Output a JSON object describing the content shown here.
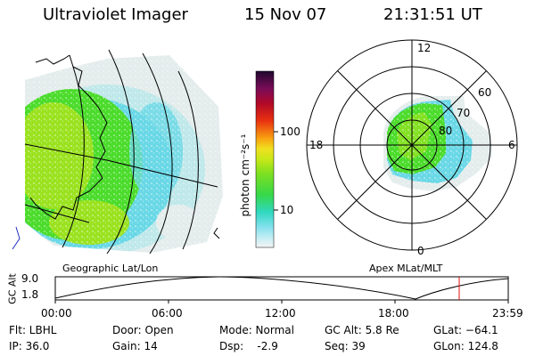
{
  "header": {
    "title": "Ultraviolet Imager",
    "date": "15 Nov 07",
    "time": "21:31:51 UT"
  },
  "colorbar": {
    "unit_label": "photon cm⁻²s⁻¹",
    "ticks": [
      "100",
      "10"
    ]
  },
  "left_panel": {
    "caption": "Geographic Lat/Lon"
  },
  "right_panel": {
    "caption": "Apex MLat/MLT",
    "mlt_labels": {
      "top": "12",
      "left": "18",
      "right": "6",
      "bottom": "0"
    },
    "lat_labels": [
      "60",
      "70",
      "80"
    ]
  },
  "orbit": {
    "axis_label": "GC Alt",
    "y_ticks": [
      "9.0",
      "1.8"
    ],
    "x_ticks": [
      "00:00",
      "06:00",
      "12:00",
      "18:00",
      "23:59"
    ]
  },
  "footer": {
    "flt": "Flt: LBHL",
    "ip": "IP: 36.0",
    "door": "Door: Open",
    "gain": "Gain: 14",
    "mode": "Mode: Normal",
    "dsp": "Dsp:    -2.9",
    "gcalt": "GC Alt: 5.8 Re",
    "seq": "Seq: 39",
    "glat": "GLat: −64.1",
    "glon": "GLon: 124.8"
  },
  "colors": {
    "aurora_green": "#4cdc2c",
    "aurora_yellowgreen": "#9be21f",
    "aurora_cyan": "#6ad8e6",
    "pale": "#e4ecec",
    "marker_red": "#e01010"
  }
}
